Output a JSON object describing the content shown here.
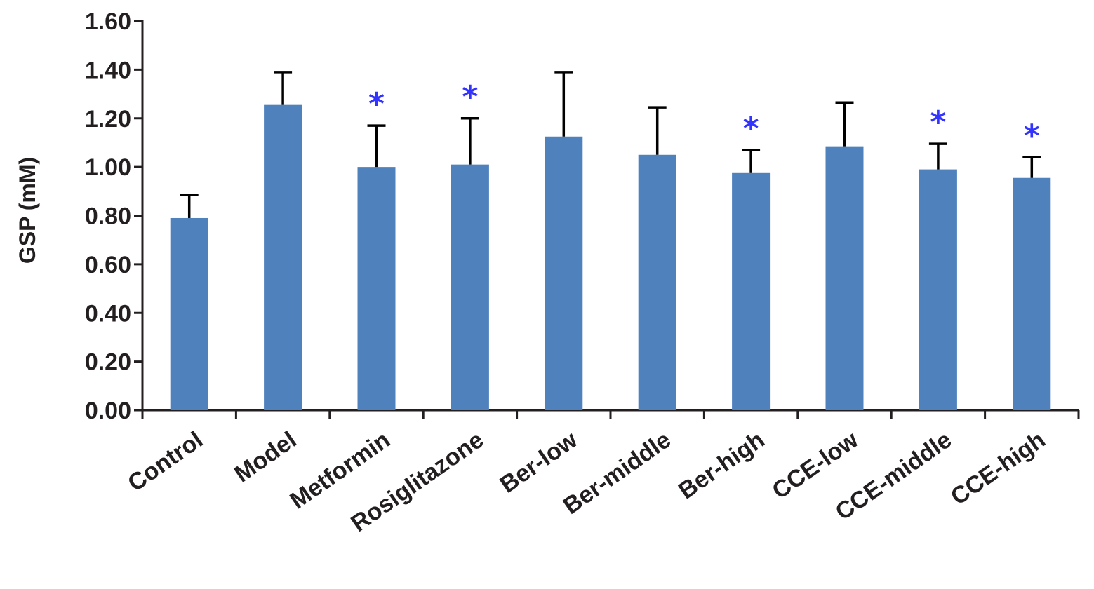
{
  "chart_data": {
    "type": "bar",
    "title": "",
    "xlabel": "",
    "ylabel": "GSP  (mM)",
    "ylim": [
      0,
      1.6
    ],
    "yticks": [
      "0.00",
      "0.20",
      "0.40",
      "0.60",
      "0.80",
      "1.00",
      "1.20",
      "1.40",
      "1.60"
    ],
    "categories": [
      "Control",
      "Model",
      "Metformin",
      "Rosiglitazone",
      "Ber-low",
      "Ber-middle",
      "Ber-high",
      "CCE-low",
      "CCE-middle",
      "CCE-high"
    ],
    "values": [
      0.79,
      1.255,
      1.0,
      1.01,
      1.125,
      1.05,
      0.975,
      1.085,
      0.99,
      0.955
    ],
    "errors": [
      0.095,
      0.135,
      0.17,
      0.19,
      0.265,
      0.195,
      0.095,
      0.18,
      0.105,
      0.085
    ],
    "significance": [
      "",
      "",
      "*",
      "*",
      "",
      "",
      "*",
      "",
      "*",
      "*"
    ],
    "grid": false,
    "legend": "none",
    "colors": {
      "bar": "#4f81bd",
      "axis": "#231f20",
      "error_bar": "#000000",
      "significance": "#3333ff"
    }
  }
}
